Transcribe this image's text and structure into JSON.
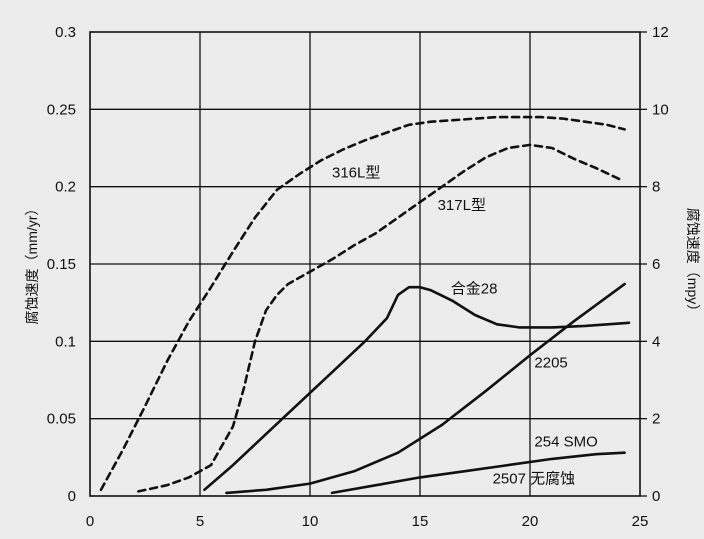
{
  "chart_data": {
    "type": "line",
    "title": "",
    "xlabel": "",
    "ylabel": "腐蚀速度（mm/yr）",
    "y2label": "腐蚀速度（mpy）",
    "xlim": [
      0,
      25
    ],
    "ylim": [
      0,
      0.3
    ],
    "y2lim": [
      0,
      12
    ],
    "grid": true,
    "x_ticks": [
      "0",
      "5",
      "10",
      "15",
      "20",
      "25"
    ],
    "y_ticks": [
      "0",
      "0.05",
      "0.1",
      "0.15",
      "0.2",
      "0.25",
      "0.3"
    ],
    "y2_ticks": [
      "0",
      "2",
      "4",
      "6",
      "8",
      "10",
      "12"
    ],
    "series": [
      {
        "name": "316L型",
        "style": "dashed",
        "color": "#111111",
        "x": [
          0.5,
          1.5,
          2.5,
          3.5,
          4.5,
          5.5,
          6.5,
          7.5,
          8.5,
          9.5,
          10.5,
          11.5,
          12.5,
          13.5,
          14.5,
          15.5,
          16.5,
          17.5,
          18.5,
          19.5,
          20.5,
          21.5,
          22.5,
          23.5,
          24.3
        ],
        "y": [
          0.004,
          0.03,
          0.058,
          0.087,
          0.113,
          0.135,
          0.158,
          0.18,
          0.198,
          0.208,
          0.217,
          0.224,
          0.23,
          0.235,
          0.24,
          0.242,
          0.243,
          0.244,
          0.245,
          0.245,
          0.245,
          0.244,
          0.242,
          0.24,
          0.237
        ]
      },
      {
        "name": "317L型",
        "style": "dashed",
        "color": "#111111",
        "x": [
          2.2,
          3.5,
          4.5,
          5.5,
          6.5,
          7.0,
          7.5,
          8.0,
          8.5,
          9.0,
          10.0,
          11.0,
          12.0,
          13.0,
          14.0,
          15.0,
          16.0,
          17.0,
          18.0,
          19.0,
          20.0,
          21.0,
          22.0,
          23.0,
          24.2
        ],
        "y": [
          0.003,
          0.007,
          0.012,
          0.02,
          0.045,
          0.07,
          0.1,
          0.12,
          0.13,
          0.137,
          0.145,
          0.153,
          0.162,
          0.17,
          0.18,
          0.19,
          0.2,
          0.21,
          0.219,
          0.225,
          0.227,
          0.225,
          0.218,
          0.212,
          0.204
        ]
      },
      {
        "name": "合金28",
        "style": "solid",
        "color": "#111111",
        "x": [
          5.2,
          6.5,
          8.0,
          9.5,
          11.0,
          12.5,
          13.5,
          14.0,
          14.5,
          15.0,
          15.5,
          16.5,
          17.5,
          18.5,
          19.5,
          21.0,
          22.5,
          24.5
        ],
        "y": [
          0.004,
          0.02,
          0.04,
          0.06,
          0.08,
          0.1,
          0.115,
          0.13,
          0.135,
          0.135,
          0.133,
          0.126,
          0.117,
          0.111,
          0.109,
          0.109,
          0.11,
          0.112
        ]
      },
      {
        "name": "2205",
        "style": "solid",
        "color": "#111111",
        "x": [
          6.2,
          8.0,
          10.0,
          12.0,
          14.0,
          16.0,
          18.0,
          20.0,
          22.0,
          24.3
        ],
        "y": [
          0.002,
          0.004,
          0.008,
          0.016,
          0.028,
          0.046,
          0.068,
          0.091,
          0.113,
          0.137
        ]
      },
      {
        "name": "254 SMO",
        "style": "solid",
        "color": "#111111",
        "x": [
          11.0,
          13.0,
          15.0,
          17.0,
          19.0,
          21.0,
          23.0,
          24.3
        ],
        "y": [
          0.002,
          0.007,
          0.012,
          0.016,
          0.02,
          0.024,
          0.027,
          0.028
        ]
      }
    ],
    "annotations": [
      {
        "text": "316L型",
        "x": 11.0,
        "y": 0.206
      },
      {
        "text": "317L型",
        "x": 15.8,
        "y": 0.185
      },
      {
        "text": "合金28",
        "x": 16.4,
        "y": 0.131
      },
      {
        "text": "2205",
        "x": 20.2,
        "y": 0.083
      },
      {
        "text": "254 SMO",
        "x": 20.2,
        "y": 0.032
      },
      {
        "text": "2507 无腐蚀",
        "x": 18.3,
        "y": 0.008
      }
    ]
  }
}
